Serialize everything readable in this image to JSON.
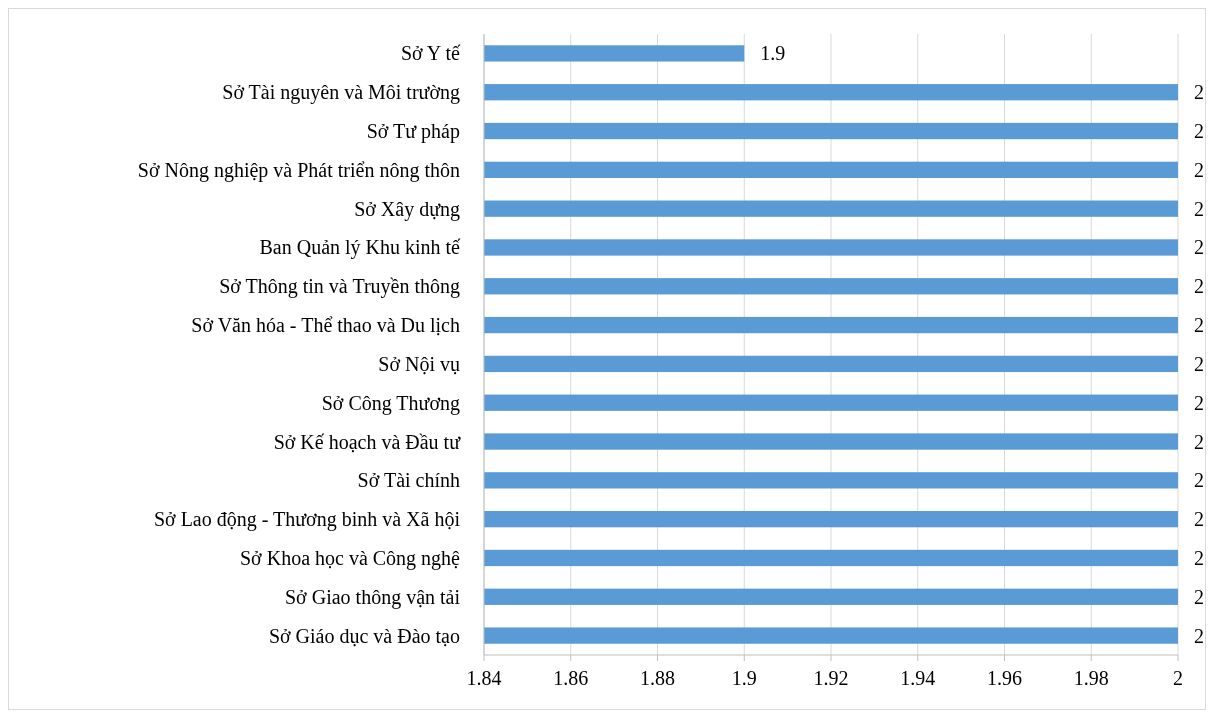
{
  "chart_data": {
    "type": "bar",
    "orientation": "horizontal",
    "categories": [
      "Sở Y tế",
      "Sở Tài nguyên và Môi trường",
      "Sở Tư pháp",
      "Sở Nông nghiệp và Phát triển nông thôn",
      "Sở Xây dựng",
      "Ban Quản lý Khu kinh tế",
      "Sở Thông tin và Truyền thông",
      "Sở Văn hóa - Thể thao và Du lịch",
      "Sở Nội vụ",
      "Sở Công Thương",
      "Sở Kế hoạch và Đầu tư",
      "Sở Tài chính",
      "Sở Lao động - Thương binh và Xã hội",
      "Sở Khoa học và Công nghệ",
      "Sở Giao thông vận tải",
      "Sở Giáo dục và Đào tạo"
    ],
    "values": [
      1.9,
      2,
      2,
      2,
      2,
      2,
      2,
      2,
      2,
      2,
      2,
      2,
      2,
      2,
      2,
      2
    ],
    "color": "#5b9bd5",
    "xlim": [
      1.84,
      2
    ],
    "xticks": [
      1.84,
      1.86,
      1.88,
      1.9,
      1.92,
      1.94,
      1.96,
      1.98,
      2
    ],
    "grid": "x",
    "data_labels": true
  }
}
